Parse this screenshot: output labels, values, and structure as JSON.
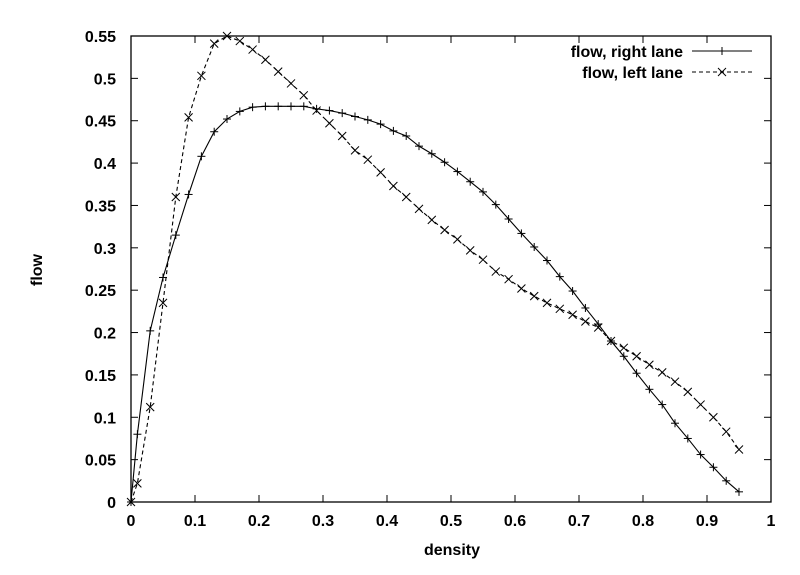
{
  "chart_data": {
    "type": "line",
    "xlabel": "density",
    "ylabel": "flow",
    "xlim": [
      0,
      1
    ],
    "ylim": [
      0,
      0.55
    ],
    "x_ticks": [
      "0",
      "0.1",
      "0.2",
      "0.3",
      "0.4",
      "0.5",
      "0.6",
      "0.7",
      "0.8",
      "0.9",
      "1"
    ],
    "y_ticks": [
      "0",
      "0.05",
      "0.1",
      "0.15",
      "0.2",
      "0.25",
      "0.3",
      "0.35",
      "0.4",
      "0.45",
      "0.5",
      "0.55"
    ],
    "legend_position": "top-right",
    "grid": false,
    "series": [
      {
        "name": "flow, right lane",
        "line_style": "solid",
        "marker": "plus",
        "color": "#000000",
        "x": [
          0,
          0.01,
          0.03,
          0.05,
          0.07,
          0.09,
          0.11,
          0.13,
          0.15,
          0.17,
          0.19,
          0.21,
          0.23,
          0.25,
          0.27,
          0.29,
          0.31,
          0.33,
          0.35,
          0.37,
          0.39,
          0.41,
          0.43,
          0.45,
          0.47,
          0.49,
          0.51,
          0.53,
          0.55,
          0.57,
          0.59,
          0.61,
          0.63,
          0.65,
          0.67,
          0.69,
          0.71,
          0.73,
          0.75,
          0.77,
          0.79,
          0.81,
          0.83,
          0.85,
          0.87,
          0.89,
          0.91,
          0.93,
          0.95
        ],
        "y": [
          0,
          0.08,
          0.202,
          0.265,
          0.315,
          0.363,
          0.408,
          0.437,
          0.452,
          0.461,
          0.466,
          0.467,
          0.467,
          0.467,
          0.467,
          0.464,
          0.462,
          0.459,
          0.455,
          0.451,
          0.446,
          0.438,
          0.432,
          0.42,
          0.411,
          0.401,
          0.39,
          0.378,
          0.366,
          0.351,
          0.334,
          0.317,
          0.301,
          0.285,
          0.266,
          0.249,
          0.229,
          0.21,
          0.19,
          0.172,
          0.152,
          0.133,
          0.115,
          0.093,
          0.075,
          0.056,
          0.041,
          0.025,
          0.012
        ]
      },
      {
        "name": "flow, left lane",
        "line_style": "dashed",
        "marker": "x",
        "color": "#000000",
        "x": [
          0,
          0.01,
          0.03,
          0.05,
          0.07,
          0.09,
          0.11,
          0.13,
          0.15,
          0.17,
          0.19,
          0.21,
          0.23,
          0.25,
          0.27,
          0.29,
          0.31,
          0.33,
          0.35,
          0.37,
          0.39,
          0.41,
          0.43,
          0.45,
          0.47,
          0.49,
          0.51,
          0.53,
          0.55,
          0.57,
          0.59,
          0.61,
          0.63,
          0.65,
          0.67,
          0.69,
          0.71,
          0.73,
          0.75,
          0.77,
          0.79,
          0.81,
          0.83,
          0.85,
          0.87,
          0.89,
          0.91,
          0.93,
          0.95
        ],
        "y": [
          0,
          0.022,
          0.112,
          0.235,
          0.36,
          0.454,
          0.503,
          0.541,
          0.55,
          0.544,
          0.534,
          0.522,
          0.508,
          0.494,
          0.48,
          0.462,
          0.447,
          0.432,
          0.415,
          0.404,
          0.389,
          0.373,
          0.36,
          0.346,
          0.333,
          0.321,
          0.31,
          0.297,
          0.286,
          0.272,
          0.263,
          0.252,
          0.243,
          0.235,
          0.228,
          0.221,
          0.213,
          0.206,
          0.19,
          0.182,
          0.172,
          0.162,
          0.153,
          0.142,
          0.13,
          0.115,
          0.1,
          0.083,
          0.062
        ]
      }
    ]
  }
}
